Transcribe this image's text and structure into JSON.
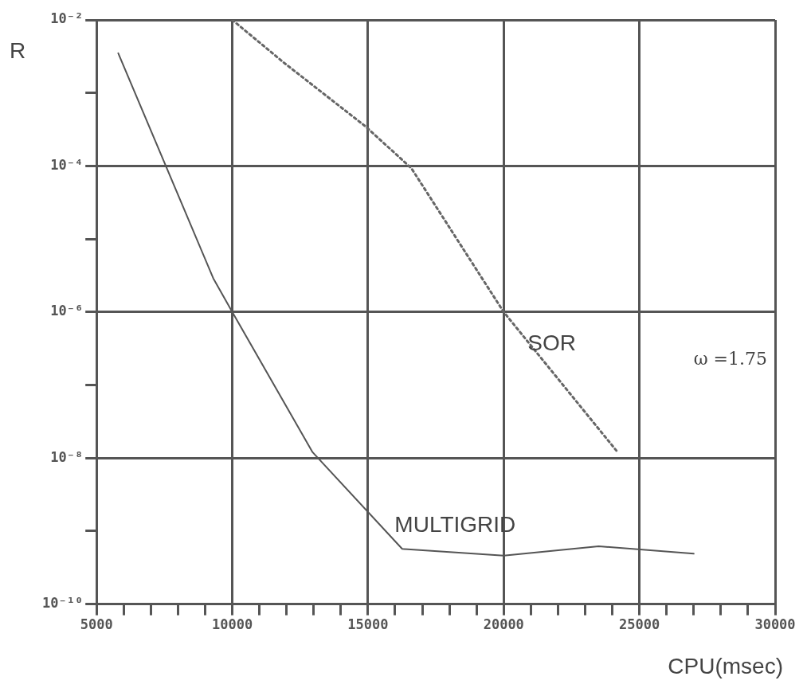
{
  "chart_data": {
    "type": "line",
    "ylabel": "R",
    "xlabel": "CPU(msec)",
    "annotations": [
      "ω =1.75"
    ],
    "xlim": [
      5000,
      30000
    ],
    "xticks": [
      5000,
      {
        "value": 6000,
        "label": null
      },
      {
        "value": 7000,
        "label": null
      },
      {
        "value": 8000,
        "label": null
      },
      {
        "value": 9000,
        "label": null
      },
      10000,
      {
        "value": 11000,
        "label": null
      },
      {
        "value": 12000,
        "label": null
      },
      {
        "value": 13000,
        "label": null
      },
      {
        "value": 14000,
        "label": null
      },
      15000,
      {
        "value": 16000,
        "label": null
      },
      {
        "value": 17000,
        "label": null
      },
      {
        "value": 18000,
        "label": null
      },
      {
        "value": 19000,
        "label": null
      },
      20000,
      {
        "value": 21000,
        "label": null
      },
      {
        "value": 22000,
        "label": null
      },
      {
        "value": 23000,
        "label": null
      },
      {
        "value": 24000,
        "label": null
      },
      25000,
      {
        "value": 26000,
        "label": null
      },
      {
        "value": 27000,
        "label": null
      },
      {
        "value": 28000,
        "label": null
      },
      {
        "value": 29000,
        "label": null
      },
      30000
    ],
    "ylim": [
      1e-10,
      0.01
    ],
    "log": "y",
    "yticks": [
      {
        "value": 1e-10,
        "label": "10⁻¹⁰"
      },
      {
        "value": 1e-09,
        "label": null
      },
      {
        "value": 1e-08,
        "label": "10⁻⁸"
      },
      {
        "value": 1e-07,
        "label": null
      },
      {
        "value": 1e-06,
        "label": "10⁻⁶"
      },
      {
        "value": 1e-05,
        "label": null
      },
      {
        "value": 0.0001,
        "label": "10⁻⁴"
      },
      {
        "value": 0.001,
        "label": null
      },
      {
        "value": 0.01,
        "label": "10⁻²"
      }
    ],
    "grid": true,
    "legend": false,
    "marker": "none",
    "series": [
      {
        "name": "SOR",
        "color": "#666666",
        "line_style": "dotted",
        "x": [
          10000,
          11900,
          14900,
          16600,
          20000,
          24200
        ],
        "values": [
          0.01,
          0.0026,
          0.00035,
          9.3e-05,
          1e-06,
          1.2e-08
        ]
      },
      {
        "name": "MULTIGRID",
        "color": "#555555",
        "line_style": "solid",
        "x": [
          5800,
          9300,
          10000,
          12960,
          16260,
          20000,
          23500,
          27000
        ],
        "values": [
          0.0035,
          2.9e-06,
          1e-06,
          1.2e-08,
          5.7e-10,
          4.6e-10,
          6.2e-10,
          4.9e-10
        ]
      }
    ]
  }
}
